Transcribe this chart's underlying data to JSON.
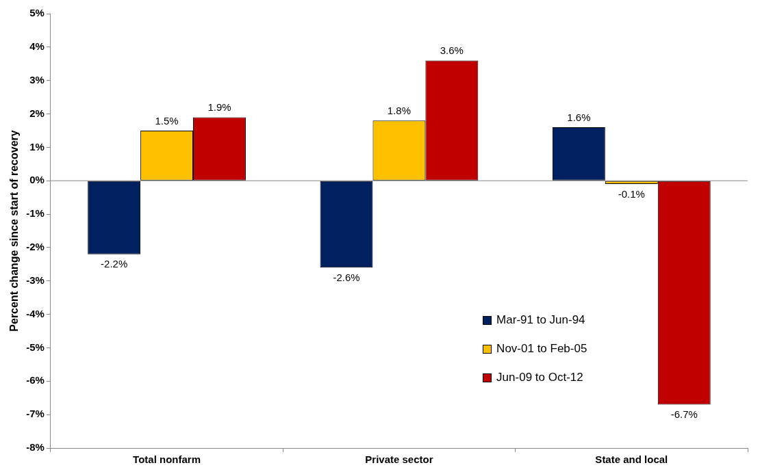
{
  "chart_data": {
    "type": "bar",
    "ylabel": "Percent change since start of recovery",
    "categories": [
      "Total nonfarm",
      "Private sector",
      "State and local"
    ],
    "series": [
      {
        "name": "Mar-91 to Jun-94",
        "color": "#002060",
        "values": [
          -2.2,
          -2.6,
          1.6
        ],
        "value_labels": [
          "-2.2%",
          "-2.6%",
          "1.6%"
        ]
      },
      {
        "name": "Nov-01 to Feb-05",
        "color": "#ffc000",
        "values": [
          1.5,
          1.8,
          -0.1
        ],
        "value_labels": [
          "1.5%",
          "1.8%",
          "-0.1%"
        ]
      },
      {
        "name": "Jun-09 to Oct-12",
        "color": "#c00000",
        "values": [
          1.9,
          3.6,
          -6.7
        ],
        "value_labels": [
          "1.9%",
          "3.6%",
          "-6.7%"
        ]
      }
    ],
    "ylim": [
      -8,
      5
    ],
    "yticks": [
      {
        "value": -8,
        "label": "-8%"
      },
      {
        "value": -7,
        "label": "-7%"
      },
      {
        "value": -6,
        "label": "-6%"
      },
      {
        "value": -5,
        "label": "-5%"
      },
      {
        "value": -4,
        "label": "-4%"
      },
      {
        "value": -3,
        "label": "-3%"
      },
      {
        "value": -2,
        "label": "-2%"
      },
      {
        "value": -1,
        "label": "-1%"
      },
      {
        "value": 0,
        "label": "0%"
      },
      {
        "value": 1,
        "label": "1%"
      },
      {
        "value": 2,
        "label": "2%"
      },
      {
        "value": 3,
        "label": "3%"
      },
      {
        "value": 4,
        "label": "4%"
      },
      {
        "value": 5,
        "label": "5%"
      }
    ],
    "ref_lines": [
      {
        "axis": "y",
        "value": 0,
        "color": "#888888"
      }
    ],
    "legend": "bottom right"
  }
}
